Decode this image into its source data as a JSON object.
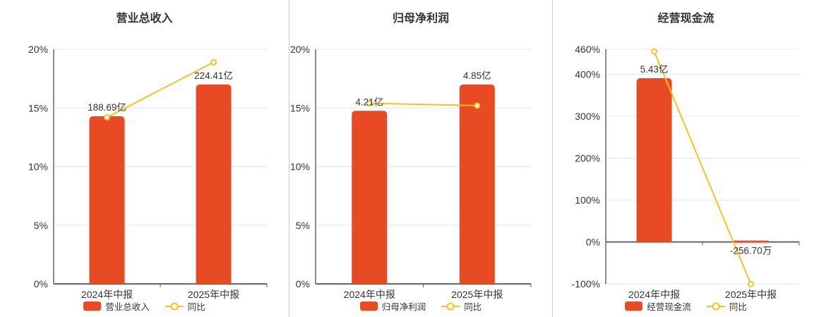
{
  "colors": {
    "bar": "#E84A23",
    "line": "#F8C31C",
    "marker_fill": "#FFFFFF",
    "axis": "#63666E",
    "grid": "#E0E6F1",
    "text": "#333333",
    "divider": "#C8C8C8",
    "background": "#FFFFFF"
  },
  "chart_data": [
    {
      "type": "bar+line",
      "title": "营业总收入",
      "categories": [
        "2024年中报",
        "2025年中报"
      ],
      "bar_series": "营业总收入",
      "line_series": "同比",
      "unit": "亿",
      "values": [
        188.69,
        224.41
      ],
      "value_labels": [
        "188.69亿",
        "224.41亿"
      ],
      "yoy_pct": [
        14.2,
        18.9
      ],
      "axis": {
        "min": 0,
        "max": 20,
        "ticks": [
          20,
          15,
          10,
          5,
          0
        ],
        "tick_suffix": "%"
      },
      "legend_position": "bottom",
      "grid": "on"
    },
    {
      "type": "bar+line",
      "title": "归母净利润",
      "categories": [
        "2024年中报",
        "2025年中报"
      ],
      "bar_series": "归母净利润",
      "line_series": "同比",
      "unit": "亿",
      "values": [
        4.21,
        4.85
      ],
      "value_labels": [
        "4.21亿",
        "4.85亿"
      ],
      "yoy_pct": [
        15.4,
        15.2
      ],
      "axis": {
        "min": 0,
        "max": 20,
        "ticks": [
          20,
          15,
          10,
          5,
          0
        ],
        "tick_suffix": "%"
      },
      "legend_position": "bottom",
      "grid": "on"
    },
    {
      "type": "bar+line",
      "title": "经营现金流",
      "categories": [
        "2024年中报",
        "2025年中报"
      ],
      "bar_series": "经营现金流",
      "line_series": "同比",
      "unit": "亿",
      "values": [
        5.43,
        -0.02567
      ],
      "value_labels": [
        "5.43亿",
        "-256.70万"
      ],
      "yoy_pct": [
        455,
        -100.5
      ],
      "axis": {
        "min": -100,
        "max": 460,
        "ticks": [
          460,
          400,
          300,
          200,
          100,
          0,
          -100
        ],
        "tick_suffix": "%"
      },
      "legend_position": "bottom",
      "grid": "on"
    }
  ]
}
